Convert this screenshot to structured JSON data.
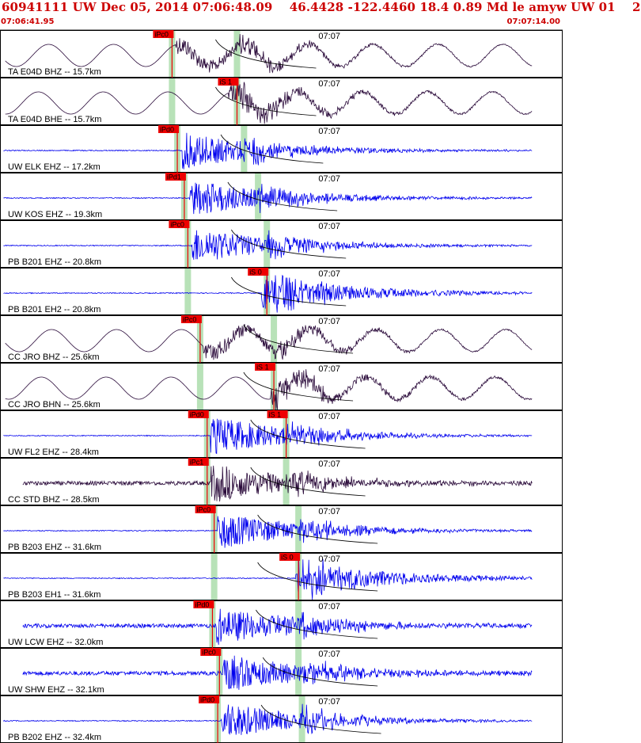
{
  "header": {
    "title": "60941111 UW Dec 05, 2014 07:06:48.09    46.4428 -122.4460 18.4 0.89 Md le amyw UW 01    2",
    "start_time": "07:06:41.95",
    "end_time": "07:07:14.00"
  },
  "colors": {
    "header_text": "#cc0000",
    "blue_trace": "#0000ee",
    "dark_trace": "#2a0a3a",
    "phase_window": "#b8e2b8",
    "pick_box": "#ee0000",
    "travel_curve": "#000000"
  },
  "chart_data": {
    "type": "seismogram",
    "time_range": [
      "07:06:41.95",
      "07:07:14.00"
    ],
    "minute_tick_label": "07:07",
    "traces": [
      {
        "label": "TA E04D BHZ -- 15.7km",
        "color": "dark",
        "kind": "long",
        "p_pick": "iPc0",
        "s_pick": null,
        "p_time": 9.8,
        "s_time": 13.5,
        "onset": 10.0
      },
      {
        "label": "TA E04D BHE -- 15.7km",
        "color": "dark",
        "kind": "long",
        "p_pick": null,
        "s_pick": "iS 1",
        "p_time": 9.8,
        "s_time": 13.5,
        "onset": 13.0
      },
      {
        "label": "UW ELK EHZ -- 17.2km",
        "color": "blue",
        "kind": "short",
        "p_pick": "iPd0",
        "s_pick": null,
        "p_time": 10.1,
        "s_time": 13.9,
        "onset": 10.4
      },
      {
        "label": "UW KOS EHZ -- 19.3km",
        "color": "blue",
        "kind": "short",
        "p_pick": "iPd1",
        "s_pick": null,
        "p_time": 10.5,
        "s_time": 14.7,
        "onset": 10.8
      },
      {
        "label": "PB B201 EHZ -- 20.8km",
        "color": "blue",
        "kind": "short",
        "p_pick": "iPc0",
        "s_pick": null,
        "p_time": 10.7,
        "s_time": 15.2,
        "onset": 10.9
      },
      {
        "label": "PB B201 EH2 -- 20.8km",
        "color": "blue",
        "kind": "short",
        "p_pick": null,
        "s_pick": "iS 0",
        "p_time": 10.7,
        "s_time": 15.2,
        "onset": 14.9
      },
      {
        "label": "CC JRO BHZ -- 25.6km",
        "color": "dark",
        "kind": "long",
        "p_pick": "iPc0",
        "s_pick": null,
        "p_time": 11.4,
        "s_time": 15.6,
        "onset": 11.6
      },
      {
        "label": "CC JRO BHN -- 25.6km",
        "color": "dark",
        "kind": "long",
        "p_pick": null,
        "s_pick": "iS 1",
        "p_time": 11.4,
        "s_time": 15.6,
        "onset": 15.4
      },
      {
        "label": "UW FL2 EHZ -- 28.4km",
        "color": "blue",
        "kind": "short",
        "p_pick": "iPd0",
        "s_pick": "iS 1",
        "p_time": 11.8,
        "s_time": 16.3,
        "onset": 12.0
      },
      {
        "label": "CC STD BHZ -- 28.5km",
        "color": "dark",
        "kind": "noisy",
        "p_pick": "iPc1",
        "s_pick": null,
        "p_time": 11.8,
        "s_time": 16.3,
        "onset": 12.0
      },
      {
        "label": "PB B203 EHZ -- 31.6km",
        "color": "blue",
        "kind": "short",
        "p_pick": "iPc0",
        "s_pick": null,
        "p_time": 12.2,
        "s_time": 17.0,
        "onset": 12.4
      },
      {
        "label": "PB B203 EH1 -- 31.6km",
        "color": "blue",
        "kind": "short",
        "p_pick": null,
        "s_pick": "iS 0",
        "p_time": 12.2,
        "s_time": 17.0,
        "onset": 16.8
      },
      {
        "label": "UW LCW EHZ -- 32.0km",
        "color": "blue",
        "kind": "noisy",
        "p_pick": "iPd0",
        "s_pick": null,
        "p_time": 12.1,
        "s_time": 17.0,
        "onset": 12.3
      },
      {
        "label": "UW SHW EHZ -- 32.1km",
        "color": "blue",
        "kind": "noisy",
        "p_pick": "iPc0",
        "s_pick": null,
        "p_time": 12.5,
        "s_time": 17.0,
        "onset": 12.7
      },
      {
        "label": "PB B202 EHZ -- 32.4km",
        "color": "blue",
        "kind": "short",
        "p_pick": "iPd0",
        "s_pick": null,
        "p_time": 12.4,
        "s_time": 17.2,
        "onset": 12.6
      }
    ]
  }
}
